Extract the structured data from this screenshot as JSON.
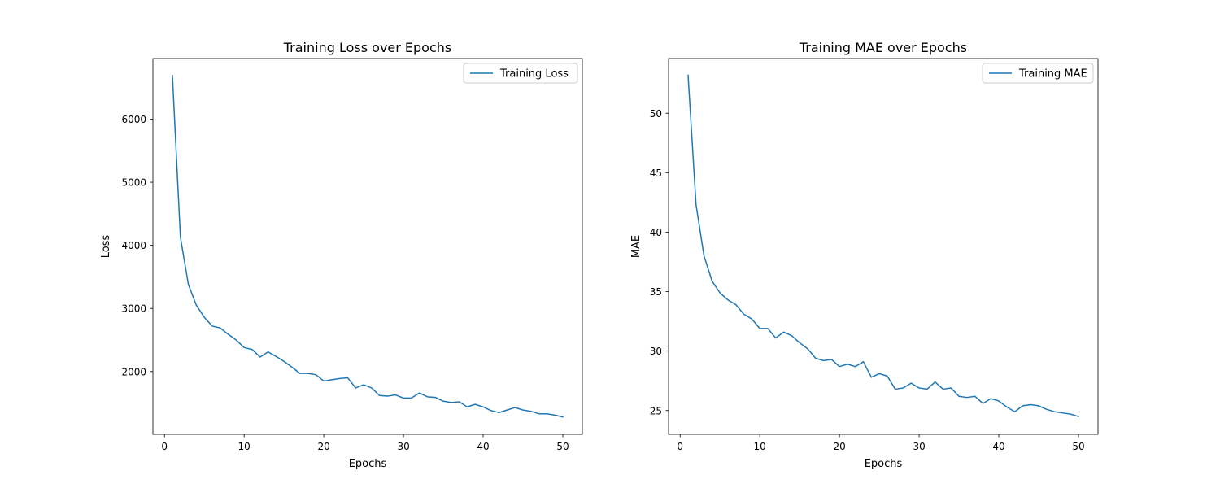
{
  "charts": [
    {
      "type": "line",
      "title": "Training Loss over Epochs",
      "xlabel": "Epochs",
      "ylabel": "Loss",
      "xlim": [
        -1.45,
        52.45
      ],
      "ylim": [
        1005,
        6960
      ],
      "xticks": [
        0,
        10,
        20,
        30,
        40,
        50
      ],
      "yticks": [
        2000,
        3000,
        4000,
        5000,
        6000
      ],
      "legend": {
        "position": "top-right",
        "entries": [
          "Training Loss"
        ]
      },
      "grid": false,
      "color": "#1f77b4",
      "series": [
        {
          "name": "Training Loss",
          "x": [
            1,
            2,
            3,
            4,
            5,
            6,
            7,
            8,
            9,
            10,
            11,
            12,
            13,
            14,
            15,
            16,
            17,
            18,
            19,
            20,
            21,
            22,
            23,
            24,
            25,
            26,
            27,
            28,
            29,
            30,
            31,
            32,
            33,
            34,
            35,
            36,
            37,
            38,
            39,
            40,
            41,
            42,
            43,
            44,
            45,
            46,
            47,
            48,
            49,
            50
          ],
          "values": [
            6690,
            4130,
            3380,
            3050,
            2860,
            2720,
            2690,
            2590,
            2500,
            2380,
            2350,
            2230,
            2310,
            2240,
            2160,
            2070,
            1970,
            1970,
            1950,
            1850,
            1870,
            1890,
            1900,
            1740,
            1790,
            1740,
            1620,
            1610,
            1630,
            1580,
            1580,
            1660,
            1600,
            1590,
            1530,
            1510,
            1520,
            1440,
            1480,
            1440,
            1380,
            1350,
            1390,
            1430,
            1390,
            1370,
            1330,
            1330,
            1310,
            1280
          ]
        }
      ]
    },
    {
      "type": "line",
      "title": "Training MAE over Epochs",
      "xlabel": "Epochs",
      "ylabel": "MAE",
      "xlim": [
        -1.45,
        52.45
      ],
      "ylim": [
        23.0,
        54.6
      ],
      "xticks": [
        0,
        10,
        20,
        30,
        40,
        50
      ],
      "yticks": [
        25,
        30,
        35,
        40,
        45,
        50
      ],
      "legend": {
        "position": "top-right",
        "entries": [
          "Training MAE"
        ]
      },
      "grid": false,
      "color": "#1f77b4",
      "series": [
        {
          "name": "Training MAE",
          "x": [
            1,
            2,
            3,
            4,
            5,
            6,
            7,
            8,
            9,
            10,
            11,
            12,
            13,
            14,
            15,
            16,
            17,
            18,
            19,
            20,
            21,
            22,
            23,
            24,
            25,
            26,
            27,
            28,
            29,
            30,
            31,
            32,
            33,
            34,
            35,
            36,
            37,
            38,
            39,
            40,
            41,
            42,
            43,
            44,
            45,
            46,
            47,
            48,
            49,
            50
          ],
          "values": [
            53.2,
            42.3,
            38.0,
            35.9,
            34.9,
            34.3,
            33.9,
            33.1,
            32.7,
            31.9,
            31.9,
            31.1,
            31.6,
            31.3,
            30.7,
            30.2,
            29.4,
            29.2,
            29.3,
            28.7,
            28.9,
            28.7,
            29.1,
            27.8,
            28.1,
            27.9,
            26.8,
            26.9,
            27.3,
            26.9,
            26.8,
            27.4,
            26.8,
            26.9,
            26.2,
            26.1,
            26.2,
            25.6,
            26.0,
            25.8,
            25.3,
            24.9,
            25.4,
            25.5,
            25.4,
            25.1,
            24.9,
            24.8,
            24.7,
            24.5
          ]
        }
      ]
    }
  ]
}
